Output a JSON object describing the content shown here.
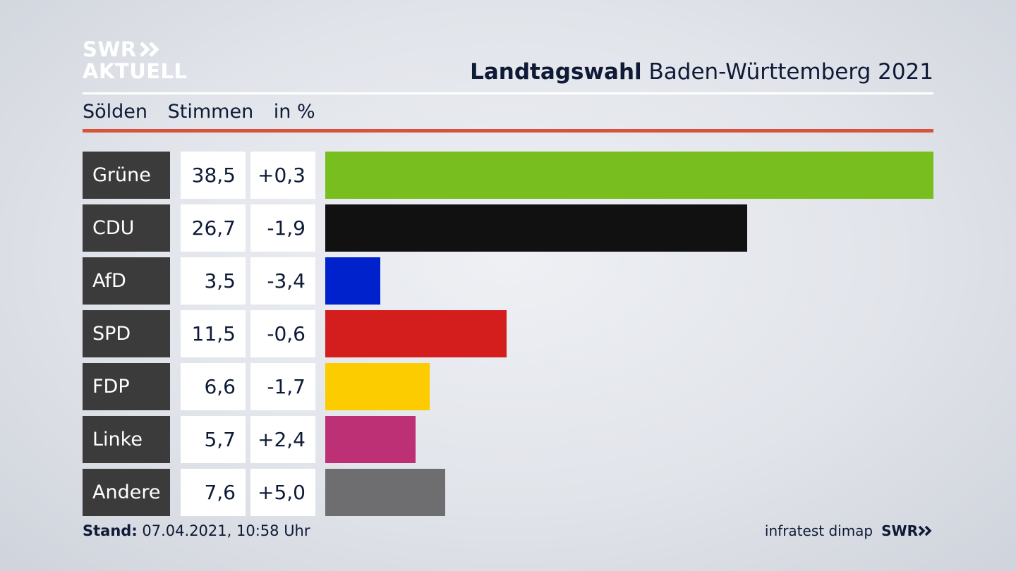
{
  "logo": {
    "line1": "SWR",
    "line2": "AKTUELL"
  },
  "header": {
    "title_bold": "Landtagswahl",
    "title_rest": "Baden-Württemberg 2021"
  },
  "subheader": {
    "location": "Sölden",
    "col1": "Stimmen",
    "col2": "in %"
  },
  "chart_data": {
    "type": "bar",
    "orientation": "horizontal",
    "categories": [
      "Grüne",
      "CDU",
      "AfD",
      "SPD",
      "FDP",
      "Linke",
      "Andere"
    ],
    "values": [
      38.5,
      26.7,
      3.5,
      11.5,
      6.6,
      5.7,
      7.6
    ],
    "value_labels": [
      "38,5",
      "26,7",
      "3,5",
      "11,5",
      "6,6",
      "5,7",
      "7,6"
    ],
    "changes": [
      "+0,3",
      "-1,9",
      "-3,4",
      "-0,6",
      "-1,7",
      "+2,4",
      "+5,0"
    ],
    "colors": [
      "#78be1e",
      "#111111",
      "#0022cc",
      "#d41e1e",
      "#fccb00",
      "#be3075",
      "#6e6e70"
    ],
    "xlim": [
      0,
      38.5
    ]
  },
  "footer": {
    "stand_label": "Stand:",
    "stand_value": "07.04.2021, 10:58 Uhr",
    "source": "infratest dimap",
    "brand": "SWR"
  }
}
